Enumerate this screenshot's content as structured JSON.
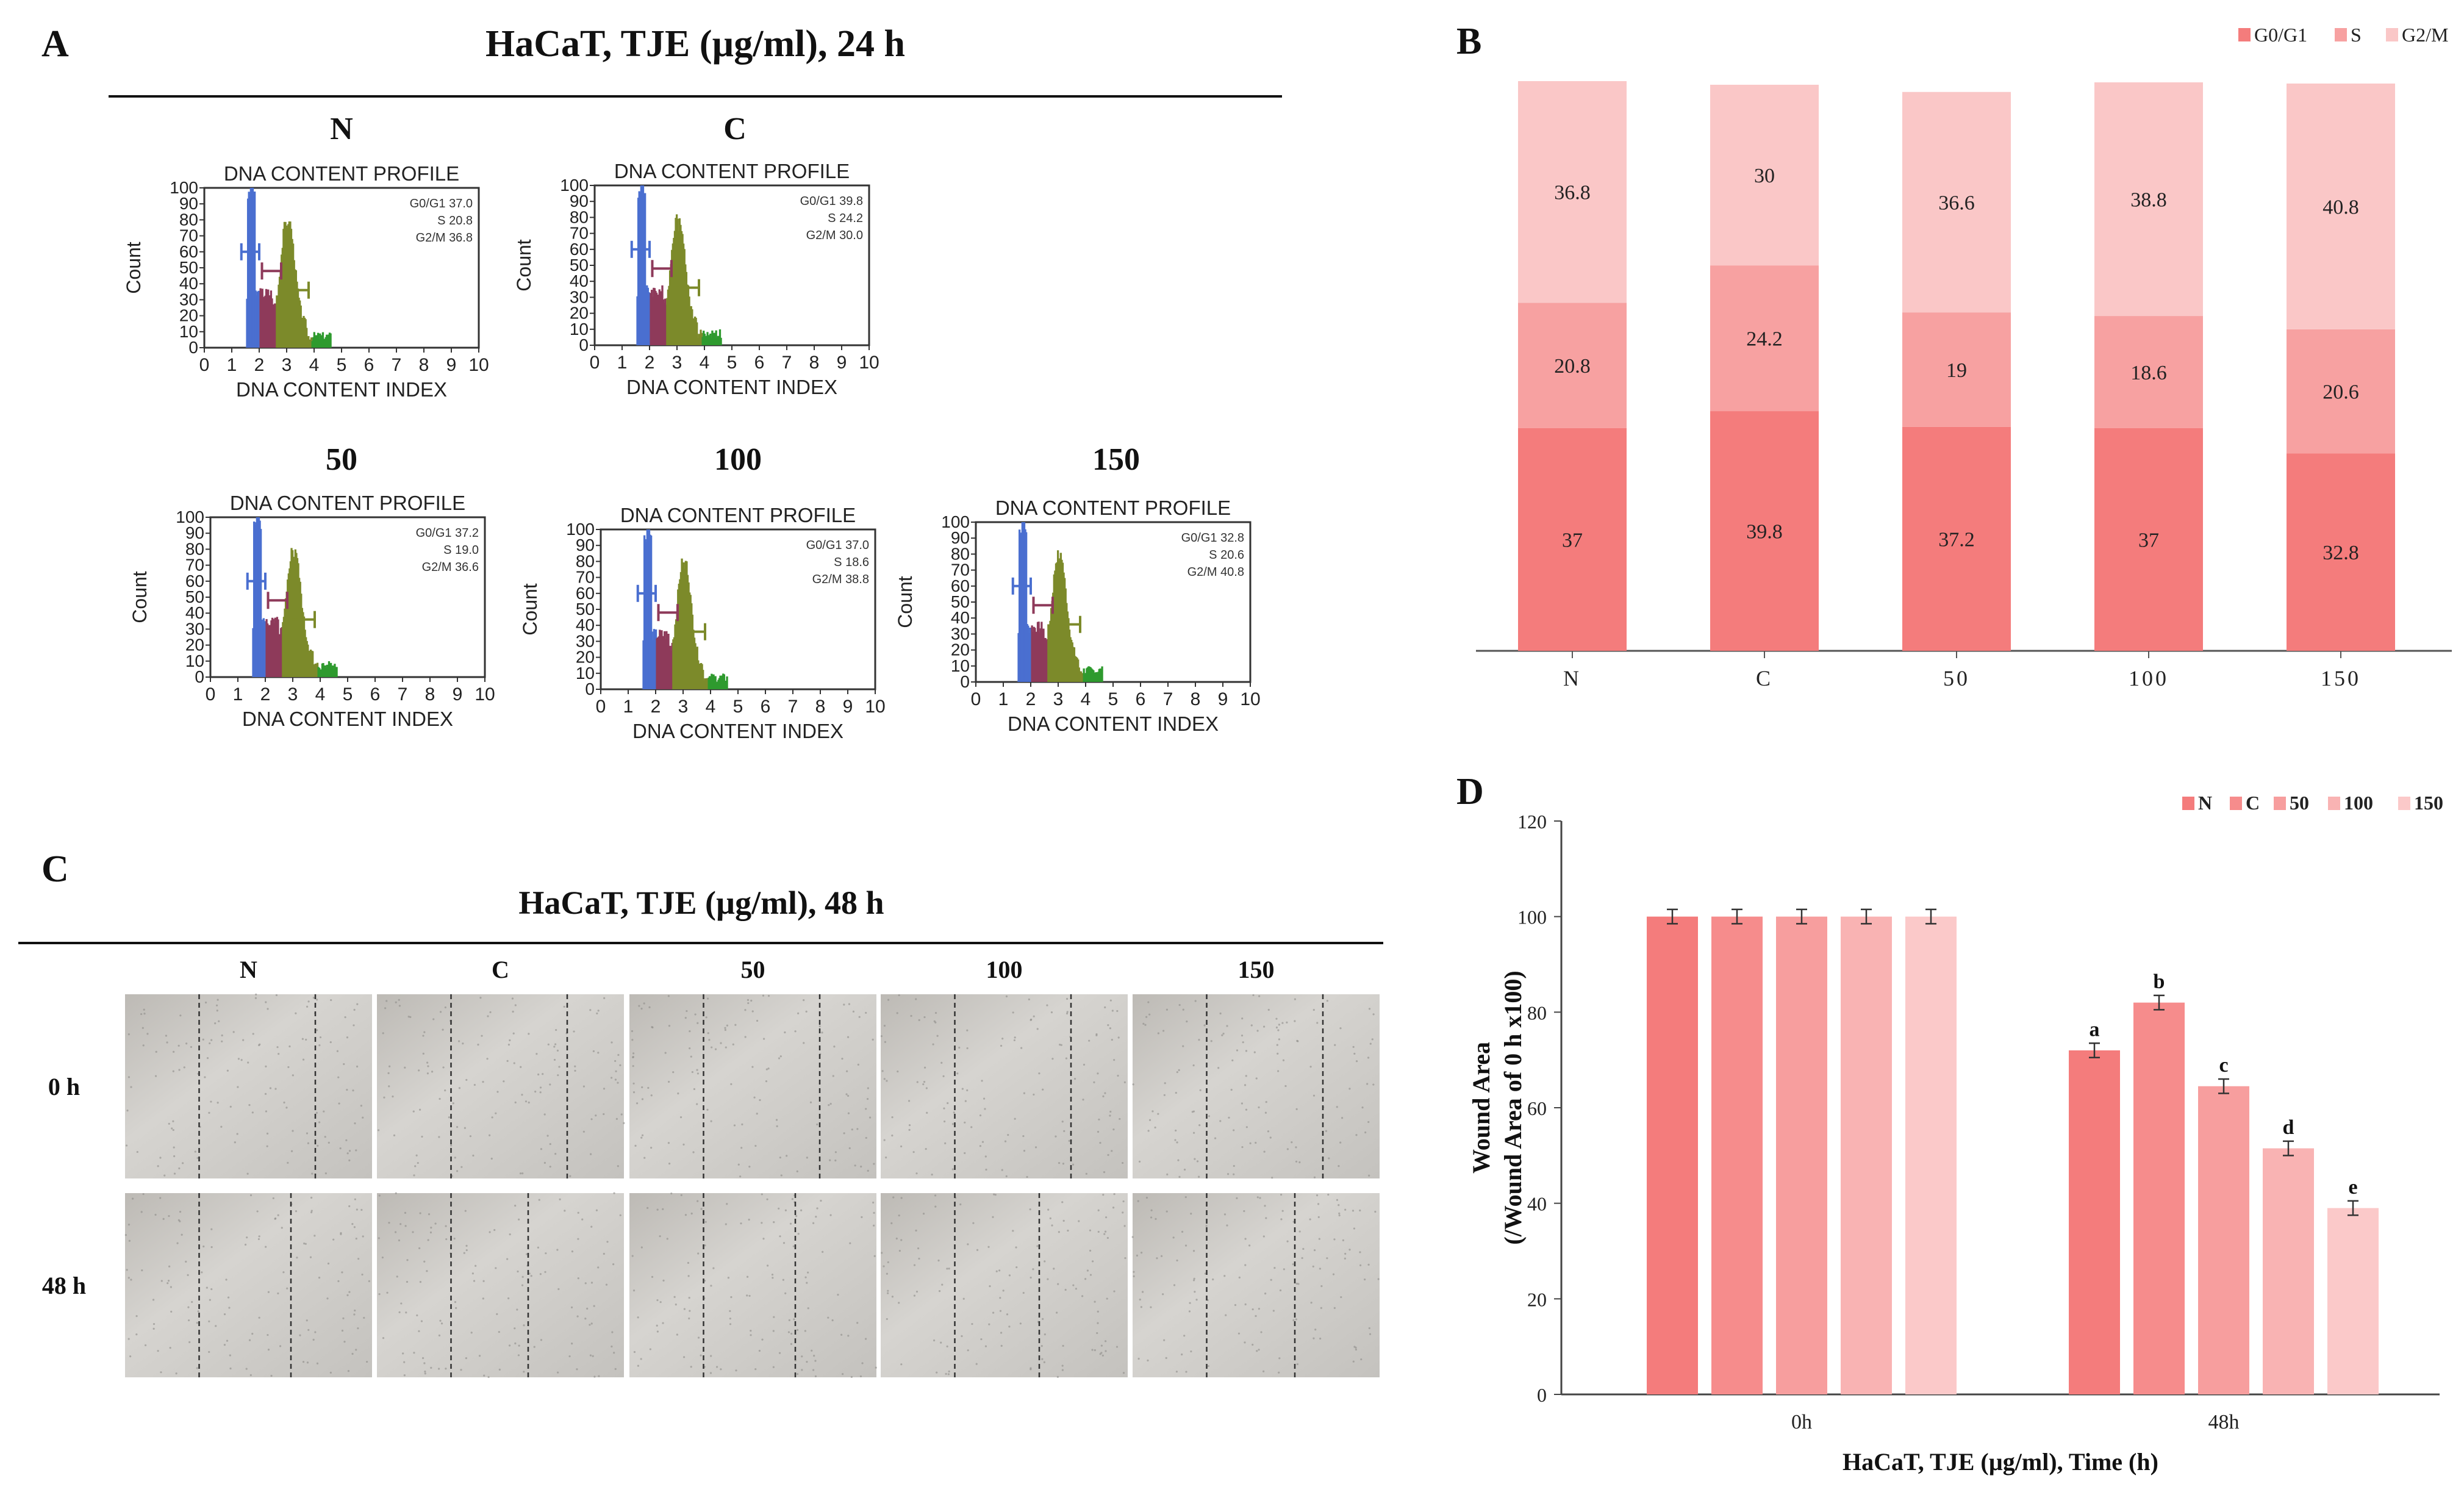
{
  "panel_letters": {
    "a": "A",
    "b": "B",
    "c": "C",
    "d": "D"
  },
  "panel_a": {
    "title": "HaCaT, TJE (µg/ml), 24 h",
    "flow_plots": [
      {
        "label": "N",
        "plot_title": "DNA CONTENT PROFILE",
        "stats": [
          "G0/G1 37.0",
          "S 20.8",
          "G2/M 36.8"
        ]
      },
      {
        "label": "C",
        "plot_title": "DNA CONTENT PROFILE",
        "stats": [
          "G0/G1 39.8",
          "S 24.2",
          "G2/M 30.0"
        ]
      },
      {
        "label": "50",
        "plot_title": "DNA CONTENT PROFILE",
        "stats": [
          "G0/G1 37.2",
          "S 19.0",
          "G2/M 36.6"
        ]
      },
      {
        "label": "100",
        "plot_title": "DNA CONTENT PROFILE",
        "stats": [
          "G0/G1 37.0",
          "S 18.6",
          "G2/M 38.8"
        ]
      },
      {
        "label": "150",
        "plot_title": "DNA CONTENT PROFILE",
        "stats": [
          "G0/G1 32.8",
          "S 20.6",
          "G2/M 40.8"
        ]
      }
    ],
    "y_axis_label": "Count",
    "x_axis_label": "DNA CONTENT INDEX",
    "y_ticks": [
      "0",
      "10",
      "20",
      "30",
      "40",
      "50",
      "60",
      "70",
      "80",
      "90",
      "100"
    ],
    "x_ticks": [
      "0",
      "1",
      "2",
      "3",
      "4",
      "5",
      "6",
      "7",
      "8",
      "9",
      "10"
    ],
    "colors": {
      "g0g1": "#4a6fd0",
      "s": "#8e3a5a",
      "g2m": "#7c8a2a",
      "tail": "#2e9a2e"
    }
  },
  "panel_c": {
    "title": "HaCaT, TJE (µg/ml), 48 h",
    "columns": [
      "N",
      "C",
      "50",
      "100",
      "150"
    ],
    "rows": [
      "0 h",
      "48 h"
    ]
  },
  "chart_data": [
    {
      "type": "bar",
      "stacked": true,
      "categories": [
        "N",
        "C",
        "50",
        "100",
        "150"
      ],
      "series": [
        {
          "name": "G0/G1",
          "values": [
            37,
            39.8,
            37.2,
            37,
            32.8
          ],
          "color": "#f47c7c"
        },
        {
          "name": "S",
          "values": [
            20.8,
            24.2,
            19,
            18.6,
            20.6
          ],
          "color": "#f7a1a1"
        },
        {
          "name": "G2/M",
          "values": [
            36.8,
            30,
            36.6,
            38.8,
            40.8
          ],
          "color": "#fac7c7"
        }
      ],
      "legend_position": "top-right"
    },
    {
      "type": "bar",
      "categories": [
        "0h",
        "48h"
      ],
      "series": [
        {
          "name": "N",
          "values": [
            100,
            72
          ],
          "errors": [
            1,
            1
          ],
          "color": "#f47c7c"
        },
        {
          "name": "C",
          "values": [
            100,
            82
          ],
          "errors": [
            1,
            1
          ],
          "color": "#f68c8c"
        },
        {
          "name": "50",
          "values": [
            100,
            64.5
          ],
          "errors": [
            1,
            1
          ],
          "color": "#f79e9e"
        },
        {
          "name": "100",
          "values": [
            100,
            51.5
          ],
          "errors": [
            1,
            1
          ],
          "color": "#f9b3b3"
        },
        {
          "name": "150",
          "values": [
            100,
            39
          ],
          "errors": [
            1,
            1
          ],
          "color": "#fbc9c9"
        }
      ],
      "significance_letters": [
        "a",
        "b",
        "c",
        "d",
        "e"
      ],
      "ylabel_line1": "Wound Area",
      "ylabel_line2": "(/Wound Area of 0 h x100)",
      "xlabel": "HaCaT, TJE (µg/ml), Time (h)",
      "ylim": [
        0,
        120
      ],
      "yticks": [
        0,
        20,
        40,
        60,
        80,
        100,
        120
      ],
      "legend_position": "top-right"
    }
  ]
}
